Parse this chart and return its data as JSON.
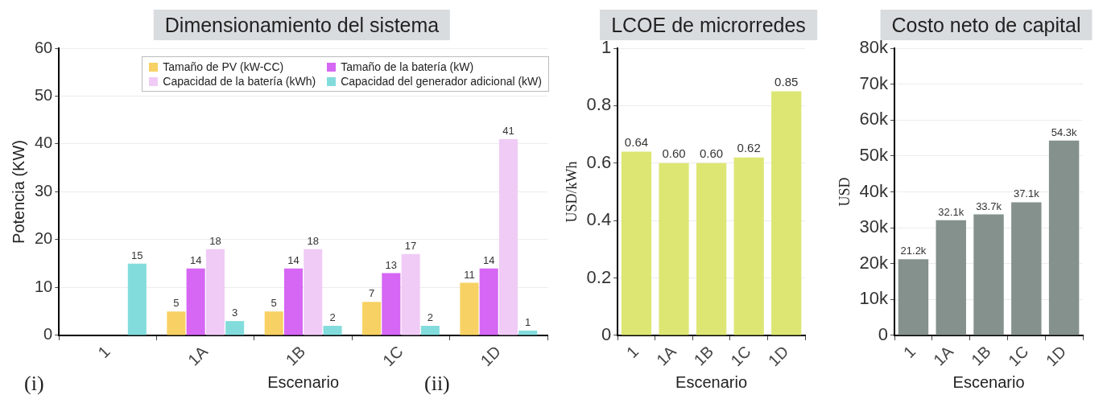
{
  "chart_data": [
    {
      "type": "bar",
      "title": "Dimensionamiento del sistema",
      "xlabel": "Escenario",
      "ylabel": "Potencia (KW)",
      "categories": [
        "1",
        "1A",
        "1B",
        "1C",
        "1D"
      ],
      "series": [
        {
          "name": "Tamaño de PV (kW-CC)",
          "color": "#f7d163",
          "values": [
            null,
            5,
            5,
            7,
            11
          ]
        },
        {
          "name": "Tamaño de la batería (kW)",
          "color": "#d567f4",
          "values": [
            null,
            14,
            14,
            13,
            14
          ]
        },
        {
          "name": "Capacidad de la batería (kWh)",
          "color": "#f0cbf6",
          "values": [
            null,
            18,
            18,
            17,
            41
          ]
        },
        {
          "name": "Capacidad del generador adicional (kW)",
          "color": "#83dcdc",
          "values": [
            15,
            3,
            2,
            2,
            1
          ]
        }
      ],
      "ylim": [
        0,
        60
      ],
      "yticks": [
        0,
        10,
        20,
        30,
        40,
        50,
        60
      ],
      "grid": "y",
      "legend": "top right",
      "data_labels": true,
      "annotations": [
        "(i)"
      ]
    },
    {
      "type": "bar",
      "title": "LCOE de microrredes",
      "xlabel": "Escenario",
      "ylabel": "USD/kWh",
      "categories": [
        "1",
        "1A",
        "1B",
        "1C",
        "1D"
      ],
      "values": [
        0.64,
        0.6,
        0.6,
        0.62,
        0.85
      ],
      "color": "#dde673",
      "value_labels": [
        "0.64",
        "0.60",
        "0.60",
        "0.62",
        "0.85"
      ],
      "ylim": [
        0,
        1
      ],
      "yticks": [
        0,
        0.2,
        0.4,
        0.6,
        0.8,
        1
      ],
      "grid": "y",
      "annotations": [
        "(ii)"
      ]
    },
    {
      "type": "bar",
      "title": "Costo neto de capital",
      "xlabel": "Escenario",
      "ylabel": "USD",
      "categories": [
        "1",
        "1A",
        "1B",
        "1C",
        "1D"
      ],
      "values": [
        21200,
        32100,
        33700,
        37100,
        54300
      ],
      "color": "#84918c",
      "value_labels": [
        "21.2k",
        "32.1k",
        "33.7k",
        "37.1k",
        "54.3k"
      ],
      "ylim": [
        0,
        80000
      ],
      "yticks": [
        0,
        {
          "value": 10000,
          "label": "10k"
        },
        {
          "value": 20000,
          "label": "20k"
        },
        {
          "value": 30000,
          "label": "30k"
        },
        {
          "value": 40000,
          "label": "40k"
        },
        {
          "value": 50000,
          "label": "50k"
        },
        {
          "value": 60000,
          "label": "60k"
        },
        {
          "value": 70000,
          "label": "70k"
        },
        {
          "value": 80000,
          "label": "80k"
        }
      ],
      "grid": "y"
    }
  ]
}
